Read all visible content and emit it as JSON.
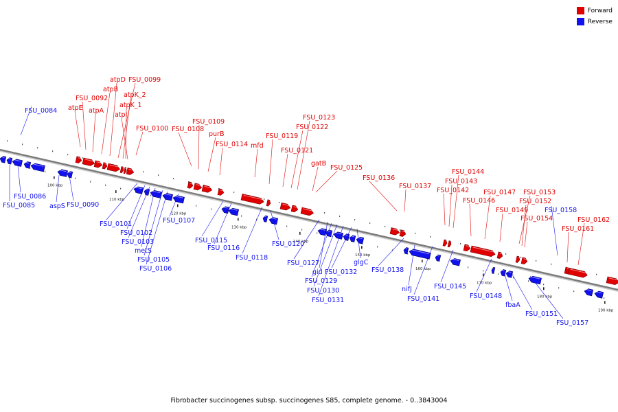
{
  "legend": {
    "forward_label": "Forward",
    "reverse_label": "Reverse",
    "forward_color": "#e00000",
    "reverse_color": "#1111ee"
  },
  "caption": "Fibrobacter succinogenes subsp. succinogenes S85, complete genome. - 0..3843004",
  "colors": {
    "forward": "#e00000",
    "reverse": "#1111ee",
    "backbone": "#888888",
    "leader": "#888888"
  },
  "ticks": [
    "100 kbp",
    "110 kbp",
    "120 kbp",
    "130 kbp",
    "140 kbp",
    "150 kbp",
    "160 kbp",
    "170 kbp",
    "180 kbp",
    "190 kbp"
  ],
  "forward_labels": [
    "atpE",
    "FSU_0092",
    "atpA",
    "atpB",
    "atpD",
    "FSU_0099",
    "atpK_2",
    "atpK_1",
    "atpI",
    "FSU_0100",
    "FSU_0108",
    "FSU_0109",
    "purB",
    "FSU_0114",
    "mfd",
    "FSU_0119",
    "FSU_0121",
    "FSU_0122",
    "FSU_0123",
    "gatB",
    "FSU_0125",
    "FSU_0136",
    "FSU_0137",
    "FSU_0142",
    "FSU_0143",
    "FSU_0144",
    "FSU_0146",
    "FSU_0147",
    "FSU_0149",
    "FSU_0153",
    "FSU_0152",
    "FSU_0154",
    "FSU_0161",
    "FSU_0162"
  ],
  "reverse_labels": [
    "FSU_0084",
    "FSU_0086",
    "FSU_0085",
    "aspS",
    "FSU_0090",
    "FSU_0101",
    "FSU_0102",
    "FSU_0103",
    "metS",
    "FSU_0105",
    "FSU_0106",
    "FSU_0107",
    "FSU_0115",
    "FSU_0116",
    "FSU_0118",
    "FSU_0120",
    "FSU_0127",
    "gid",
    "FSU_0129",
    "FSU_0130",
    "FSU_0131",
    "FSU_0132",
    "glgC",
    "FSU_0138",
    "nifJ",
    "FSU_0141",
    "FSU_0145",
    "FSU_0148",
    "fbaA",
    "FSU_0151",
    "FSU_0157",
    "FSU_0158"
  ]
}
